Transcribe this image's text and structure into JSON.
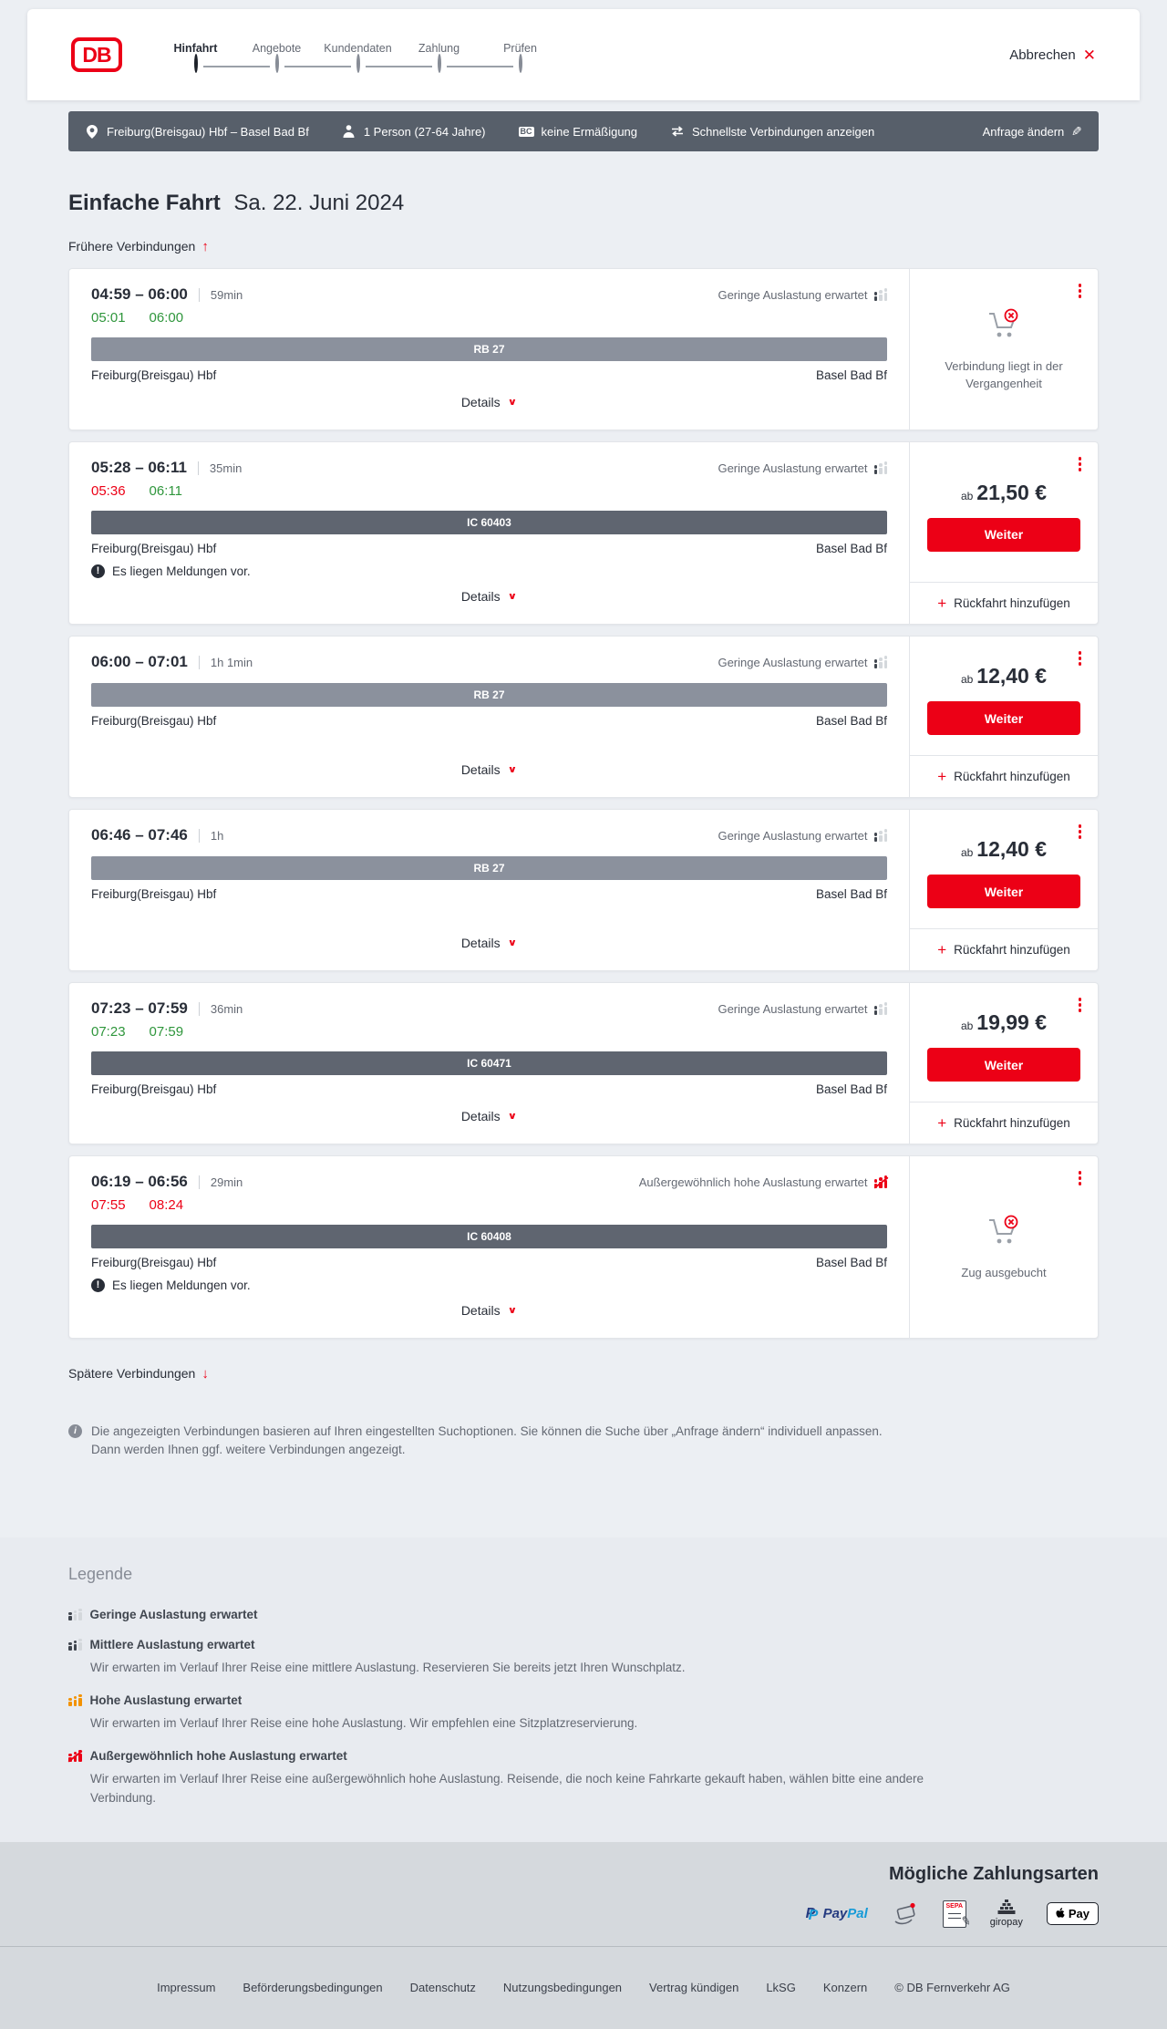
{
  "header": {
    "logo_text": "DB",
    "steps": [
      {
        "label": "Hinfahrt",
        "active": true
      },
      {
        "label": "Angebote",
        "active": false
      },
      {
        "label": "Kundendaten",
        "active": false
      },
      {
        "label": "Zahlung",
        "active": false
      },
      {
        "label": "Prüfen",
        "active": false
      }
    ],
    "cancel_label": "Abbrechen"
  },
  "searchbar": {
    "route": "Freiburg(Breisgau) Hbf – Basel Bad Bf",
    "passengers": "1 Person (27-64 Jahre)",
    "discount_badge": "BC",
    "discount": "keine Ermäßigung",
    "sort": "Schnellste Verbindungen anzeigen",
    "edit_label": "Anfrage ändern"
  },
  "results": {
    "title": "Einfache Fahrt",
    "date": "Sa. 22. Juni 2024",
    "earlier_label": "Frühere Verbindungen",
    "later_label": "Spätere Verbindungen",
    "details_label": "Details",
    "messages_note": "Es liegen Meldungen vor.",
    "from_label": "ab",
    "weiter_label": "Weiter",
    "return_label": "Rückfahrt hinzufügen",
    "connections": [
      {
        "depart_arrive": "04:59 – 06:00",
        "duration": "59min",
        "realtime": [
          {
            "time": "05:01",
            "status": "ontime"
          },
          {
            "time": "06:00",
            "status": "ontime"
          }
        ],
        "occupancy_label": "Geringe Auslastung erwartet",
        "occupancy_level": "low",
        "train_label": "RB 27",
        "train_class": "regional",
        "from": "Freiburg(Breisgau) Hbf",
        "to": "Basel Bad Bf",
        "has_messages": false,
        "offer": {
          "type": "past",
          "status_label": "Verbindung liegt in der Vergangenheit"
        }
      },
      {
        "depart_arrive": "05:28 – 06:11",
        "duration": "35min",
        "realtime": [
          {
            "time": "05:36",
            "status": "delay"
          },
          {
            "time": "06:11",
            "status": "ontime"
          }
        ],
        "occupancy_label": "Geringe Auslastung erwartet",
        "occupancy_level": "low",
        "train_label": "IC 60403",
        "train_class": "longdistance",
        "from": "Freiburg(Breisgau) Hbf",
        "to": "Basel Bad Bf",
        "has_messages": true,
        "offer": {
          "type": "price",
          "price": "21,50 €"
        }
      },
      {
        "depart_arrive": "06:00 – 07:01",
        "duration": "1h 1min",
        "realtime": null,
        "occupancy_label": "Geringe Auslastung erwartet",
        "occupancy_level": "low",
        "train_label": "RB 27",
        "train_class": "regional",
        "from": "Freiburg(Breisgau) Hbf",
        "to": "Basel Bad Bf",
        "has_messages": false,
        "offer": {
          "type": "price",
          "price": "12,40 €"
        }
      },
      {
        "depart_arrive": "06:46 – 07:46",
        "duration": "1h",
        "realtime": null,
        "occupancy_label": "Geringe Auslastung erwartet",
        "occupancy_level": "low",
        "train_label": "RB 27",
        "train_class": "regional",
        "from": "Freiburg(Breisgau) Hbf",
        "to": "Basel Bad Bf",
        "has_messages": false,
        "offer": {
          "type": "price",
          "price": "12,40 €"
        }
      },
      {
        "depart_arrive": "07:23 – 07:59",
        "duration": "36min",
        "realtime": [
          {
            "time": "07:23",
            "status": "ontime"
          },
          {
            "time": "07:59",
            "status": "ontime"
          }
        ],
        "occupancy_label": "Geringe Auslastung erwartet",
        "occupancy_level": "low",
        "train_label": "IC 60471",
        "train_class": "longdistance",
        "from": "Freiburg(Breisgau) Hbf",
        "to": "Basel Bad Bf",
        "has_messages": false,
        "offer": {
          "type": "price",
          "price": "19,99 €"
        }
      },
      {
        "depart_arrive": "06:19 – 06:56",
        "duration": "29min",
        "realtime": [
          {
            "time": "07:55",
            "status": "delay"
          },
          {
            "time": "08:24",
            "status": "delay"
          }
        ],
        "occupancy_label": "Außergewöhnlich hohe Auslastung erwartet",
        "occupancy_level": "vhigh",
        "train_label": "IC 60408",
        "train_class": "longdistance",
        "from": "Freiburg(Breisgau) Hbf",
        "to": "Basel Bad Bf",
        "has_messages": true,
        "offer": {
          "type": "soldout",
          "status_label": "Zug ausgebucht"
        }
      }
    ],
    "info_note": "Die angezeigten Verbindungen basieren auf Ihren eingestellten Suchoptionen. Sie können die Suche über „Anfrage ändern“ individuell anpassen. Dann werden Ihnen ggf. weitere Verbindungen angezeigt."
  },
  "legend": {
    "title": "Legende",
    "items": [
      {
        "level": "low",
        "label": "Geringe Auslastung erwartet",
        "description": ""
      },
      {
        "level": "medium",
        "label": "Mittlere Auslastung erwartet",
        "description": "Wir erwarten im Verlauf Ihrer Reise eine mittlere Auslastung. Reservieren Sie bereits jetzt Ihren Wunschplatz."
      },
      {
        "level": "high",
        "label": "Hohe Auslastung erwartet",
        "description": "Wir erwarten im Verlauf Ihrer Reise eine hohe Auslastung. Wir empfehlen eine Sitzplatzreservierung."
      },
      {
        "level": "vhigh",
        "label": "Außergewöhnlich hohe Auslastung erwartet",
        "description": "Wir erwarten im Verlauf Ihrer Reise eine außergewöhnlich hohe Auslastung. Reisende, die noch keine Fahrkarte gekauft haben, wählen bitte eine andere Verbindung."
      }
    ]
  },
  "payment": {
    "title": "Mögliche Zahlungsarten",
    "methods": [
      {
        "name": "PayPal",
        "text_dark": "Pay",
        "text_light": "Pal"
      },
      {
        "name": "Kreditkarte"
      },
      {
        "name": "SEPA-Lastschrift",
        "text": "SEPA"
      },
      {
        "name": "giropay",
        "text": "giropay"
      },
      {
        "name": "Apple Pay",
        "text": "Pay"
      }
    ]
  },
  "footer": {
    "links": [
      "Impressum",
      "Beförderungsbedingungen",
      "Datenschutz",
      "Nutzungsbedingungen",
      "Vertrag kündigen",
      "LkSG",
      "Konzern"
    ],
    "copyright": "© DB Fernverkehr AG"
  },
  "colors": {
    "brand_red": "#ec0016",
    "ontime_green": "#2f963c",
    "delay_red": "#ec0016",
    "high_occupancy_orange": "#f39200"
  }
}
